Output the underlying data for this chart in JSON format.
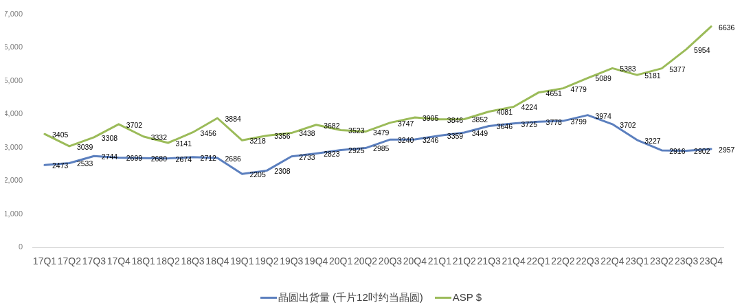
{
  "chart_data": {
    "type": "line",
    "categories": [
      "17Q1",
      "17Q2",
      "17Q3",
      "17Q4",
      "18Q1",
      "18Q2",
      "18Q3",
      "18Q4",
      "19Q1",
      "19Q2",
      "19Q3",
      "19Q4",
      "20Q1",
      "20Q2",
      "20Q3",
      "20Q4",
      "21Q1",
      "21Q2",
      "21Q3",
      "21Q4",
      "22Q1",
      "22Q2",
      "22Q3",
      "22Q4",
      "23Q1",
      "23Q2",
      "23Q3",
      "23Q4"
    ],
    "series": [
      {
        "name": "晶圆出货量 (千片12吋约当晶圆)",
        "color": "#5b7fbe",
        "values": [
          2473,
          2533,
          2744,
          2699,
          2680,
          2674,
          2712,
          2686,
          2205,
          2308,
          2733,
          2823,
          2925,
          2985,
          3240,
          3246,
          3359,
          3449,
          3646,
          3725,
          3778,
          3799,
          3974,
          3702,
          3227,
          2916,
          2902,
          2957
        ]
      },
      {
        "name": "ASP $",
        "color": "#9bbb59",
        "values": [
          3405,
          3039,
          3308,
          3702,
          3332,
          3141,
          3456,
          3884,
          3218,
          3356,
          3438,
          3682,
          3523,
          3479,
          3747,
          3905,
          3846,
          3852,
          4081,
          4224,
          4651,
          4779,
          5089,
          5383,
          5181,
          5377,
          5954,
          6636
        ]
      }
    ],
    "ylim": [
      0,
      7000
    ],
    "yticks": [
      {
        "value": 0,
        "label": "0"
      },
      {
        "value": 1000,
        "label": "1,000"
      },
      {
        "value": 2000,
        "label": "2,000"
      },
      {
        "value": 3000,
        "label": "3,000"
      },
      {
        "value": 4000,
        "label": "4,000"
      },
      {
        "value": 5000,
        "label": "5,000"
      },
      {
        "value": 6000,
        "label": "6,000"
      },
      {
        "value": 7000,
        "label": "7,000"
      }
    ],
    "data_labels": true,
    "legend": "bottom",
    "marker": "none",
    "line_style": "solid"
  }
}
